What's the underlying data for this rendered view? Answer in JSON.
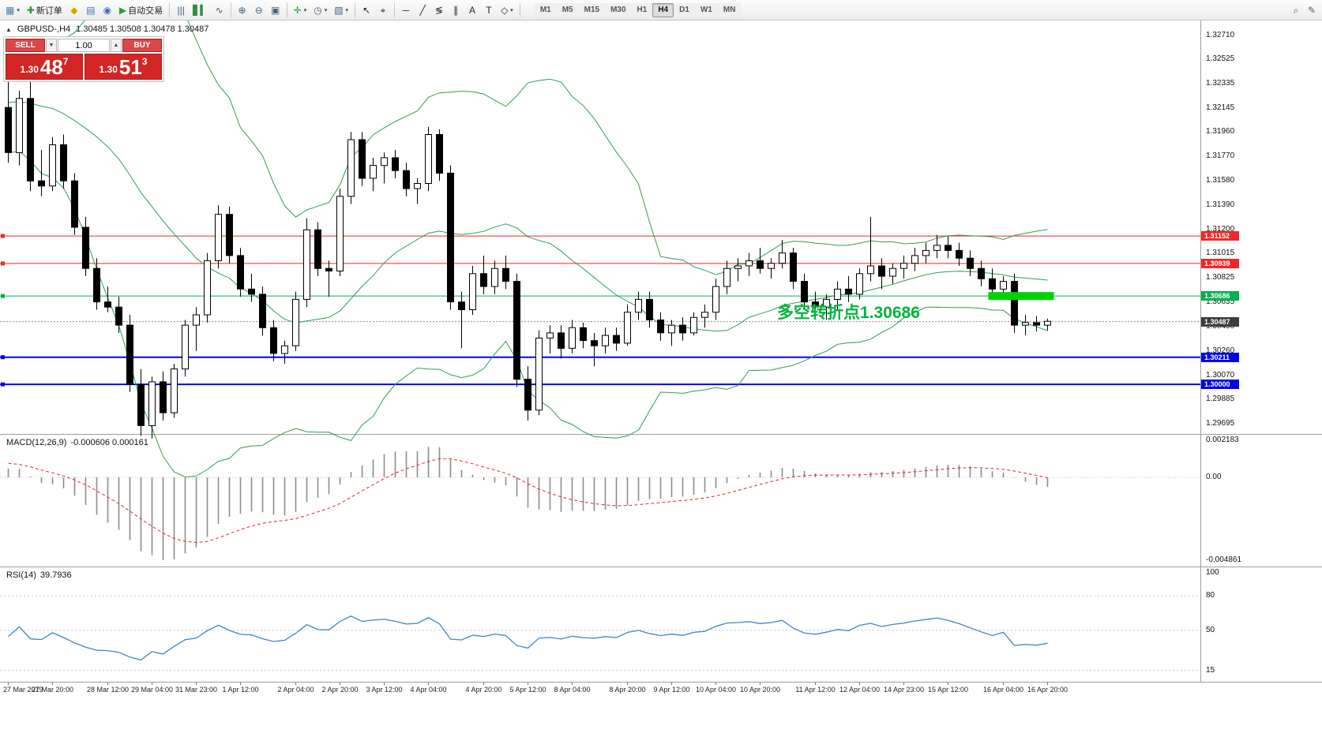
{
  "toolbar": {
    "items": [
      {
        "name": "new-chart-icon",
        "glyph": "▦",
        "color": "#4a7ba6",
        "dd": true
      },
      {
        "name": "new-order-button",
        "glyph": "✚",
        "color": "#1f9d2f",
        "label": "新订单"
      },
      {
        "name": "market-watch-icon",
        "glyph": "◆",
        "color": "#d9a400"
      },
      {
        "name": "data-window-icon",
        "glyph": "▤",
        "color": "#3f6fb5"
      },
      {
        "name": "navigator-icon",
        "glyph": "◉",
        "color": "#3f6fb5"
      },
      {
        "name": "auto-trading-button",
        "glyph": "▶",
        "color": "#23a638",
        "label": "自动交易"
      },
      {
        "sep": true
      },
      {
        "name": "bar-chart-icon",
        "glyph": "|||",
        "color": "#3c5a78"
      },
      {
        "name": "candlestick-chart-icon",
        "glyph": "▋▍",
        "color": "#2f8f46"
      },
      {
        "name": "line-chart-icon",
        "glyph": "∿",
        "color": "#3c5a78"
      },
      {
        "sep": true
      },
      {
        "name": "zoom-in-icon",
        "glyph": "⊕",
        "color": "#44617e"
      },
      {
        "name": "zoom-out-icon",
        "glyph": "⊖",
        "color": "#44617e"
      },
      {
        "name": "tile-windows-icon",
        "glyph": "▣",
        "color": "#44617e"
      },
      {
        "sep": true
      },
      {
        "name": "indicators-icon",
        "glyph": "✛",
        "color": "#1f9d2f",
        "dd": true
      },
      {
        "name": "periods-icon",
        "glyph": "◷",
        "color": "#44617e",
        "dd": true
      },
      {
        "name": "templates-icon",
        "glyph": "▧",
        "color": "#44617e",
        "dd": true
      },
      {
        "sep": true
      },
      {
        "name": "cursor-icon",
        "glyph": "↖",
        "color": "#222222"
      },
      {
        "name": "crosshair-icon",
        "glyph": "⌖",
        "color": "#222222"
      },
      {
        "sep": true
      },
      {
        "name": "horizontal-line-icon",
        "glyph": "─",
        "color": "#222222"
      },
      {
        "name": "trendline-icon",
        "glyph": "╱",
        "color": "#222222"
      },
      {
        "name": "fibonacci-icon",
        "glyph": "≶",
        "color": "#222222"
      },
      {
        "name": "channel-icon",
        "glyph": "∥",
        "color": "#222222"
      },
      {
        "name": "text-icon",
        "glyph": "A",
        "color": "#222222"
      },
      {
        "name": "label-icon",
        "glyph": "T",
        "color": "#222222"
      },
      {
        "name": "shapes-icon",
        "glyph": "◇",
        "color": "#222222",
        "dd": true
      },
      {
        "sep": true
      }
    ],
    "timeframes": [
      "M1",
      "M5",
      "M15",
      "M30",
      "H1",
      "H4",
      "D1",
      "W1",
      "MN"
    ],
    "active_timeframe": "H4",
    "right_items": [
      {
        "name": "search-icon",
        "glyph": "⌕",
        "color": "#44617e"
      },
      {
        "name": "settings-icon",
        "glyph": "✎",
        "color": "#44617e"
      }
    ]
  },
  "symbol_header": {
    "collapse_glyph": "▲",
    "symbol": "GBPUSD-,H4",
    "ohlc": "1.30485 1.30508 1.30478 1.30487"
  },
  "trade_panel": {
    "sell_label": "SELL",
    "buy_label": "BUY",
    "volume": "1.00",
    "down_glyph": "▼",
    "up_glyph": "▲",
    "sell": {
      "prefix": "1.30",
      "big": "48",
      "sup": "7"
    },
    "buy": {
      "prefix": "1.30",
      "big": "51",
      "sup": "3"
    }
  },
  "annotation": {
    "text": "多空转折点1.30686",
    "color": "#00b43c"
  },
  "highlight": {
    "price": 1.30686,
    "color": "#00d400"
  },
  "levels": [
    {
      "price": 1.31152,
      "label": "1.31152",
      "style": "red"
    },
    {
      "price": 1.30939,
      "label": "1.30939",
      "style": "red"
    },
    {
      "price": 1.30686,
      "label": "1.30686",
      "style": "green"
    },
    {
      "price": 1.30487,
      "label": "1.30487",
      "style": "current"
    },
    {
      "price": 1.30211,
      "label": "1.30211",
      "style": "blue"
    },
    {
      "price": 1.3,
      "label": "1.30000",
      "style": "blue"
    }
  ],
  "price_axis": {
    "labels": [
      "1.32710",
      "1.32525",
      "1.32335",
      "1.32145",
      "1.31960",
      "1.31770",
      "1.31580",
      "1.31390",
      "1.31200",
      "1.31015",
      "1.30825",
      "1.30635",
      "1.30450",
      "1.30260",
      "1.30070",
      "1.29885",
      "1.29695"
    ]
  },
  "macd": {
    "label": "MACD(12,26,9)",
    "values": "-0.000606 0.000161",
    "params": [
      12,
      26,
      9
    ],
    "axis": [
      {
        "value": 0.002183,
        "label": "0.002183"
      },
      {
        "value": 0,
        "label": "0.00"
      },
      {
        "value": -0.004861,
        "label": "-0.004861"
      }
    ]
  },
  "rsi": {
    "label": "RSI(14)",
    "value": "39.7936",
    "period": 14,
    "levels": [
      80,
      50,
      15
    ],
    "axis": [
      {
        "value": 100,
        "label": "100"
      },
      {
        "value": 80,
        "label": "80"
      },
      {
        "value": 50,
        "label": "50"
      },
      {
        "value": 15,
        "label": "15"
      }
    ]
  },
  "chart_data": {
    "type": "candlestick",
    "symbol": "GBPUSD",
    "timeframe": "H4",
    "bollinger": {
      "period": 20,
      "deviation": 2
    },
    "warmup_closes": [
      1.318,
      1.3165,
      1.315,
      1.317,
      1.319,
      1.321,
      1.3225,
      1.3205,
      1.3185,
      1.32,
      1.322,
      1.324,
      1.323,
      1.321,
      1.3195,
      1.3215,
      1.3235,
      1.325,
      1.324,
      1.322,
      1.32,
      1.3215,
      1.323,
      1.3245,
      1.3235,
      1.3225
    ],
    "candles": [
      [
        1.3215,
        1.3243,
        1.3172,
        1.318
      ],
      [
        1.318,
        1.3228,
        1.317,
        1.3222
      ],
      [
        1.3222,
        1.3236,
        1.315,
        1.3158
      ],
      [
        1.3158,
        1.3182,
        1.3146,
        1.3154
      ],
      [
        1.3154,
        1.3192,
        1.315,
        1.3186
      ],
      [
        1.3186,
        1.3194,
        1.3152,
        1.3158
      ],
      [
        1.3158,
        1.3164,
        1.3116,
        1.3122
      ],
      [
        1.3122,
        1.313,
        1.3084,
        1.309
      ],
      [
        1.309,
        1.3098,
        1.3058,
        1.3064
      ],
      [
        1.3064,
        1.3076,
        1.3056,
        1.306
      ],
      [
        1.306,
        1.3068,
        1.304,
        1.3046
      ],
      [
        1.3046,
        1.3054,
        1.2994,
        1.3
      ],
      [
        1.3,
        1.3012,
        1.296,
        1.2968
      ],
      [
        1.2968,
        1.3006,
        1.2958,
        1.3002
      ],
      [
        1.3002,
        1.301,
        1.2972,
        1.2978
      ],
      [
        1.2978,
        1.3016,
        1.2974,
        1.3012
      ],
      [
        1.3012,
        1.305,
        1.3006,
        1.3046
      ],
      [
        1.3046,
        1.306,
        1.3026,
        1.3054
      ],
      [
        1.3054,
        1.3102,
        1.3048,
        1.3096
      ],
      [
        1.3096,
        1.3139,
        1.309,
        1.3132
      ],
      [
        1.3132,
        1.3138,
        1.3094,
        1.31
      ],
      [
        1.31,
        1.3106,
        1.3068,
        1.3074
      ],
      [
        1.3074,
        1.3086,
        1.3064,
        1.307
      ],
      [
        1.307,
        1.3076,
        1.3038,
        1.3044
      ],
      [
        1.3044,
        1.305,
        1.3018,
        1.3024
      ],
      [
        1.3024,
        1.3034,
        1.3016,
        1.303
      ],
      [
        1.303,
        1.3072,
        1.3026,
        1.3066
      ],
      [
        1.3066,
        1.3129,
        1.306,
        1.312
      ],
      [
        1.312,
        1.3126,
        1.3084,
        1.309
      ],
      [
        1.309,
        1.3096,
        1.3068,
        1.3088
      ],
      [
        1.3088,
        1.3152,
        1.3084,
        1.3146
      ],
      [
        1.3146,
        1.3196,
        1.314,
        1.319
      ],
      [
        1.319,
        1.3196,
        1.3154,
        1.316
      ],
      [
        1.316,
        1.3176,
        1.315,
        1.317
      ],
      [
        1.317,
        1.318,
        1.3156,
        1.3176
      ],
      [
        1.3176,
        1.3182,
        1.316,
        1.3166
      ],
      [
        1.3166,
        1.3172,
        1.3146,
        1.3152
      ],
      [
        1.3152,
        1.316,
        1.314,
        1.3156
      ],
      [
        1.3156,
        1.32,
        1.315,
        1.3194
      ],
      [
        1.3194,
        1.3198,
        1.3158,
        1.3164
      ],
      [
        1.3164,
        1.317,
        1.3058,
        1.3064
      ],
      [
        1.3064,
        1.3072,
        1.3028,
        1.3058
      ],
      [
        1.3058,
        1.3092,
        1.3054,
        1.3086
      ],
      [
        1.3086,
        1.31,
        1.307,
        1.3076
      ],
      [
        1.3076,
        1.3096,
        1.307,
        1.309
      ],
      [
        1.309,
        1.31,
        1.3074,
        1.308
      ],
      [
        1.308,
        1.3086,
        1.2998,
        1.3004
      ],
      [
        1.3004,
        1.3014,
        1.2972,
        1.298
      ],
      [
        1.298,
        1.3042,
        1.2976,
        1.3036
      ],
      [
        1.3036,
        1.3046,
        1.3024,
        1.304
      ],
      [
        1.304,
        1.3046,
        1.302,
        1.3028
      ],
      [
        1.3028,
        1.305,
        1.3024,
        1.3044
      ],
      [
        1.3044,
        1.3048,
        1.3028,
        1.3034
      ],
      [
        1.3034,
        1.304,
        1.3014,
        1.303
      ],
      [
        1.303,
        1.3044,
        1.3024,
        1.3038
      ],
      [
        1.3038,
        1.3044,
        1.3026,
        1.3032
      ],
      [
        1.3032,
        1.3062,
        1.303,
        1.3056
      ],
      [
        1.3056,
        1.3072,
        1.305,
        1.3066
      ],
      [
        1.3066,
        1.3072,
        1.3044,
        1.305
      ],
      [
        1.305,
        1.3056,
        1.3034,
        1.304
      ],
      [
        1.304,
        1.305,
        1.303,
        1.3046
      ],
      [
        1.3046,
        1.3052,
        1.3034,
        1.304
      ],
      [
        1.304,
        1.3056,
        1.3038,
        1.3052
      ],
      [
        1.3052,
        1.3062,
        1.3044,
        1.3056
      ],
      [
        1.3056,
        1.3082,
        1.305,
        1.3076
      ],
      [
        1.3076,
        1.3096,
        1.307,
        1.309
      ],
      [
        1.309,
        1.3098,
        1.308,
        1.3092
      ],
      [
        1.3092,
        1.3102,
        1.3084,
        1.3096
      ],
      [
        1.3096,
        1.3106,
        1.3086,
        1.309
      ],
      [
        1.309,
        1.3098,
        1.3082,
        1.3094
      ],
      [
        1.3094,
        1.3112,
        1.309,
        1.3102
      ],
      [
        1.3102,
        1.3106,
        1.3074,
        1.308
      ],
      [
        1.308,
        1.3086,
        1.3058,
        1.3064
      ],
      [
        1.3064,
        1.3072,
        1.3054,
        1.306
      ],
      [
        1.306,
        1.307,
        1.305,
        1.3066
      ],
      [
        1.3066,
        1.308,
        1.3058,
        1.3074
      ],
      [
        1.3074,
        1.3084,
        1.3064,
        1.307
      ],
      [
        1.307,
        1.309,
        1.3066,
        1.3086
      ],
      [
        1.3086,
        1.313,
        1.308,
        1.3092
      ],
      [
        1.3092,
        1.3098,
        1.3074,
        1.3084
      ],
      [
        1.3084,
        1.3094,
        1.3078,
        1.309
      ],
      [
        1.309,
        1.31,
        1.3082,
        1.3094
      ],
      [
        1.3094,
        1.3106,
        1.3088,
        1.31
      ],
      [
        1.31,
        1.311,
        1.3094,
        1.3104
      ],
      [
        1.3104,
        1.3116,
        1.3098,
        1.3108
      ],
      [
        1.3108,
        1.3115,
        1.3098,
        1.3104
      ],
      [
        1.3104,
        1.311,
        1.3092,
        1.3098
      ],
      [
        1.3098,
        1.3104,
        1.3084,
        1.309
      ],
      [
        1.309,
        1.3096,
        1.3076,
        1.3082
      ],
      [
        1.3082,
        1.309,
        1.3068,
        1.3074
      ],
      [
        1.3074,
        1.3084,
        1.3066,
        1.308
      ],
      [
        1.308,
        1.3086,
        1.304,
        1.3046
      ],
      [
        1.3046,
        1.3054,
        1.3038,
        1.3048
      ],
      [
        1.3048,
        1.3053,
        1.3041,
        1.3046
      ],
      [
        1.3046,
        1.3051,
        1.3042,
        1.3049
      ]
    ],
    "time_labels": [
      "27 Mar 2019",
      "27 Mar 20:00",
      "28 Mar 12:00",
      "29 Mar 04:00",
      "31 Mar 23:00",
      "1 Apr 12:00",
      "2 Apr 04:00",
      "2 Apr 20:00",
      "3 Apr 12:00",
      "4 Apr 04:00",
      "4 Apr 20:00",
      "5 Apr 12:00",
      "8 Apr 04:00",
      "8 Apr 20:00",
      "9 Apr 12:00",
      "10 Apr 04:00",
      "10 Apr 20:00",
      "11 Apr 12:00",
      "12 Apr 04:00",
      "14 Apr 23:00",
      "15 Apr 12:00",
      "16 Apr 04:00",
      "16 Apr 20:00"
    ]
  }
}
